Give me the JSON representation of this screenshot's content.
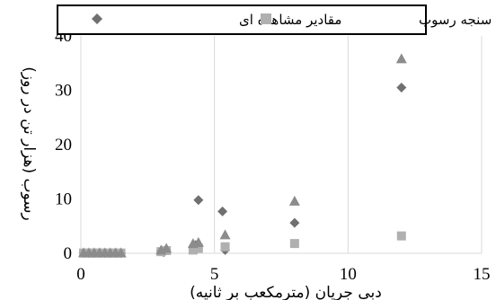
{
  "chart_data": {
    "type": "scatter",
    "xlabel": "دبی جریان (مترمکعب بر ثانیه)",
    "ylabel": "رسوب (هزار تن در روز)",
    "xlim": [
      0,
      15
    ],
    "ylim": [
      0,
      40
    ],
    "x_ticks": [
      "0",
      "5",
      "10",
      "15"
    ],
    "y_ticks": [
      "0",
      "10",
      "20",
      "30",
      "40"
    ],
    "grid": "vertical",
    "legend_position": "top",
    "series": [
      {
        "name": "مقادیر مشاهده ای",
        "marker": "diamond",
        "color": "#707070",
        "points": [
          [
            0.1,
            0.05
          ],
          [
            0.3,
            0.05
          ],
          [
            0.5,
            0.05
          ],
          [
            0.7,
            0.05
          ],
          [
            0.9,
            0.05
          ],
          [
            1.1,
            0.05
          ],
          [
            1.3,
            0.05
          ],
          [
            1.5,
            0.05
          ],
          [
            3.0,
            0.4
          ],
          [
            3.1,
            0.2
          ],
          [
            4.3,
            1.5
          ],
          [
            4.4,
            9.8
          ],
          [
            5.3,
            7.7
          ],
          [
            5.4,
            0.6
          ],
          [
            8.0,
            5.6
          ],
          [
            12.0,
            30.5
          ]
        ]
      },
      {
        "name": "منحنی سنجه رسوب",
        "marker": "square",
        "color": "#b0b0b0",
        "points": [
          [
            0.1,
            0.05
          ],
          [
            0.3,
            0.05
          ],
          [
            0.5,
            0.05
          ],
          [
            0.7,
            0.05
          ],
          [
            0.9,
            0.05
          ],
          [
            1.1,
            0.05
          ],
          [
            1.3,
            0.05
          ],
          [
            1.5,
            0.05
          ],
          [
            3.0,
            0.3
          ],
          [
            3.2,
            0.5
          ],
          [
            4.2,
            0.6
          ],
          [
            4.4,
            0.9
          ],
          [
            5.4,
            1.2
          ],
          [
            8.0,
            1.8
          ],
          [
            12.0,
            3.2
          ]
        ]
      },
      {
        "name": "",
        "marker": "triangle",
        "color": "#8c8c8c",
        "points": [
          [
            0.1,
            0.1
          ],
          [
            0.3,
            0.1
          ],
          [
            0.5,
            0.1
          ],
          [
            0.7,
            0.1
          ],
          [
            0.9,
            0.1
          ],
          [
            1.1,
            0.1
          ],
          [
            1.3,
            0.1
          ],
          [
            1.5,
            0.1
          ],
          [
            3.0,
            0.6
          ],
          [
            3.2,
            0.9
          ],
          [
            4.2,
            1.8
          ],
          [
            4.4,
            2.0
          ],
          [
            5.4,
            3.4
          ],
          [
            8.0,
            9.6
          ],
          [
            12.0,
            35.8
          ]
        ]
      }
    ]
  }
}
